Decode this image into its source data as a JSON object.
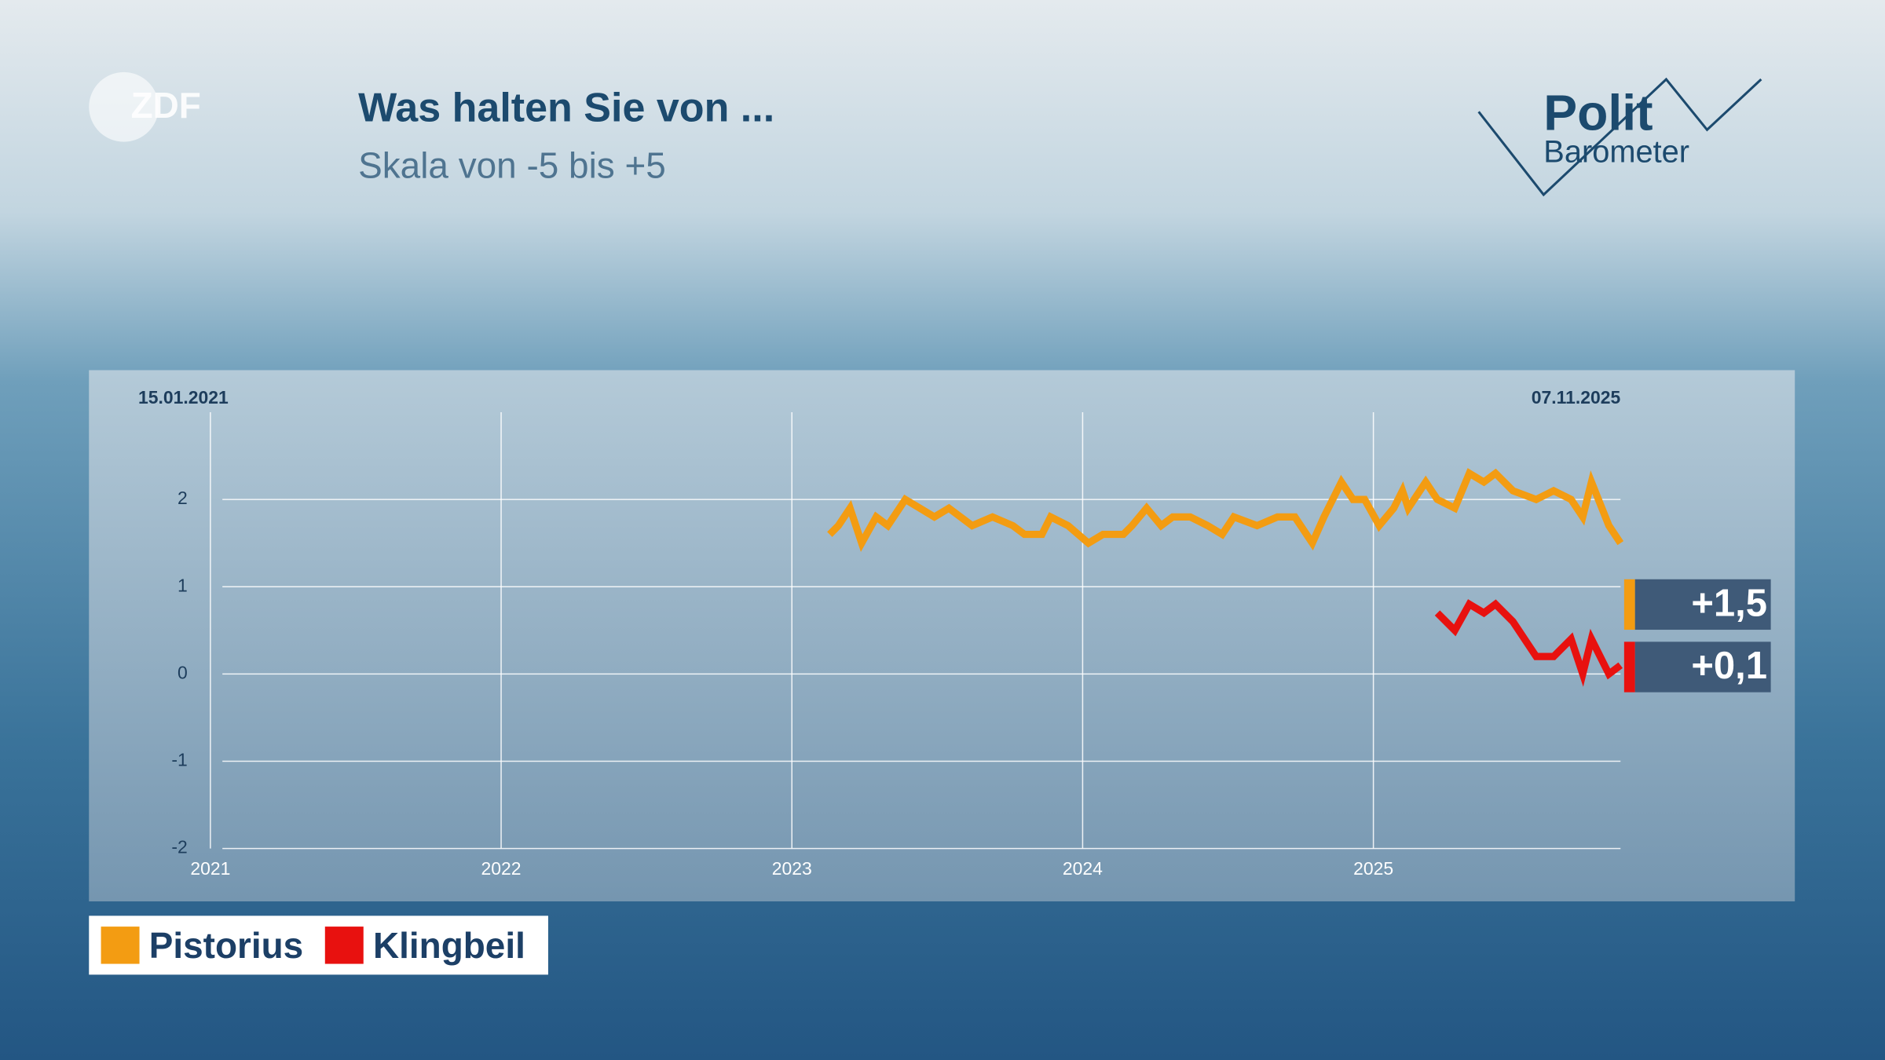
{
  "branding": {
    "broadcaster": "ZDF",
    "show_top": "Polit",
    "show_bottom": "Barometer"
  },
  "chart_data": {
    "type": "line",
    "title": "Was halten Sie von ...",
    "subtitle": "Skala von -5 bis +5",
    "date_range": [
      "15.01.2021",
      "07.11.2025"
    ],
    "xlim": [
      2021,
      2025.85
    ],
    "xticks": [
      2021,
      2022,
      2023,
      2024,
      2025
    ],
    "ylim": [
      -2,
      3
    ],
    "yticks": [
      -2,
      -1,
      0,
      1,
      2
    ],
    "grid": true,
    "series": [
      {
        "name": "Pistorius",
        "color": "#f39c12",
        "end_value_label": "+1,5",
        "x": [
          2023.13,
          2023.16,
          2023.2,
          2023.24,
          2023.29,
          2023.33,
          2023.39,
          2023.44,
          2023.49,
          2023.54,
          2023.62,
          2023.69,
          2023.76,
          2023.8,
          2023.86,
          2023.89,
          2023.95,
          2024.02,
          2024.07,
          2024.14,
          2024.17,
          2024.22,
          2024.27,
          2024.31,
          2024.37,
          2024.43,
          2024.48,
          2024.52,
          2024.6,
          2024.67,
          2024.73,
          2024.79,
          2024.83,
          2024.89,
          2024.93,
          2024.97,
          2025.02,
          2025.07,
          2025.1,
          2025.12,
          2025.18,
          2025.22,
          2025.28,
          2025.33,
          2025.38,
          2025.42,
          2025.48,
          2025.56,
          2025.62,
          2025.68,
          2025.72,
          2025.75,
          2025.81,
          2025.85
        ],
        "values": [
          1.6,
          1.7,
          1.9,
          1.5,
          1.8,
          1.7,
          2.0,
          1.9,
          1.8,
          1.9,
          1.7,
          1.8,
          1.7,
          1.6,
          1.6,
          1.8,
          1.7,
          1.5,
          1.6,
          1.6,
          1.7,
          1.9,
          1.7,
          1.8,
          1.8,
          1.7,
          1.6,
          1.8,
          1.7,
          1.8,
          1.8,
          1.5,
          1.8,
          2.2,
          2.0,
          2.0,
          1.7,
          1.9,
          2.1,
          1.9,
          2.2,
          2.0,
          1.9,
          2.3,
          2.2,
          2.3,
          2.1,
          2.0,
          2.1,
          2.0,
          1.8,
          2.2,
          1.7,
          1.5
        ]
      },
      {
        "name": "Klingbeil",
        "color": "#e8110f",
        "end_value_label": "+0,1",
        "x": [
          2025.22,
          2025.28,
          2025.33,
          2025.38,
          2025.42,
          2025.48,
          2025.56,
          2025.62,
          2025.68,
          2025.72,
          2025.75,
          2025.81,
          2025.85
        ],
        "values": [
          0.7,
          0.5,
          0.8,
          0.7,
          0.8,
          0.6,
          0.2,
          0.2,
          0.4,
          0.0,
          0.4,
          0.0,
          0.1
        ]
      }
    ]
  }
}
